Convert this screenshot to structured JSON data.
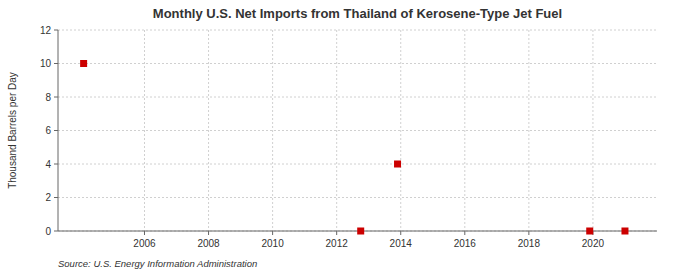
{
  "chart_data": {
    "type": "scatter",
    "title": "Monthly U.S. Net Imports from Thailand of Kerosene-Type Jet Fuel",
    "ylabel": "Thousand Barrels per Day",
    "annotation": "Source: U.S. Energy Information Administration",
    "x": [
      2004.1,
      2012.75,
      2013.9,
      2019.9,
      2021.0
    ],
    "values": [
      10.0,
      0.0,
      4.0,
      0.0,
      0.0
    ],
    "color": "#cc0000",
    "marker": "square",
    "xlim": [
      2003.3,
      2022.0
    ],
    "ylim": [
      0,
      12
    ],
    "xticks": [
      2006,
      2008,
      2010,
      2012,
      2014,
      2016,
      2018,
      2020
    ],
    "yticks": [
      0,
      2,
      4,
      6,
      8,
      10,
      12
    ],
    "grid": true
  }
}
